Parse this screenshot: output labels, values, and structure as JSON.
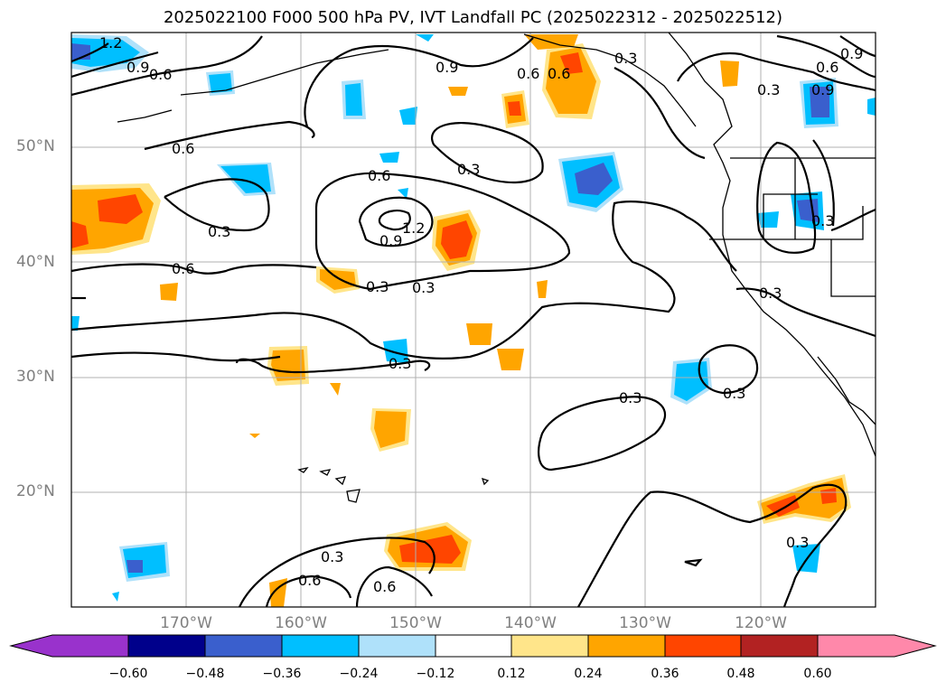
{
  "title": "2025022100 F000 500 hPa PV, IVT Landfall PC (2025022312 - 2025022512)",
  "axes": {
    "lat_labels": [
      "50°N",
      "40°N",
      "30°N",
      "20°N"
    ],
    "lon_labels": [
      "170°W",
      "160°W",
      "150°W",
      "140°W",
      "130°W",
      "120°W"
    ]
  },
  "colorbar": {
    "ticks": [
      "−0.60",
      "−0.48",
      "−0.36",
      "−0.24",
      "−0.12",
      "0.12",
      "0.24",
      "0.36",
      "0.48",
      "0.60"
    ],
    "colors": [
      "#9932cc",
      "#00008b",
      "#3a5fcd",
      "#00bfff",
      "#afe1fa",
      "#ffffff",
      "#ffe58a",
      "#ffa500",
      "#ff4500",
      "#b22222",
      "#ff88aa"
    ]
  },
  "contour_labels": [
    "1.2",
    "0.9",
    "0.6",
    "0.6",
    "0.9",
    "0.6",
    "0.3",
    "0.6",
    "0.9",
    "0.6",
    "0.3",
    "0.6",
    "0.9",
    "1.2",
    "0.3",
    "0.6",
    "0.3",
    "0.3",
    "0.3",
    "0.3",
    "0.3",
    "0.3",
    "0.3",
    "0.3",
    "0.9",
    "0.3",
    "0.3",
    "0.6",
    "0.6",
    "0.3"
  ],
  "fill_colors": {
    "light_orange": "#ffe58a",
    "orange": "#ffa500",
    "red_orange": "#ff4500",
    "light_blue": "#afe1fa",
    "blue": "#00bfff",
    "dark_blue": "#3a5fcd"
  }
}
